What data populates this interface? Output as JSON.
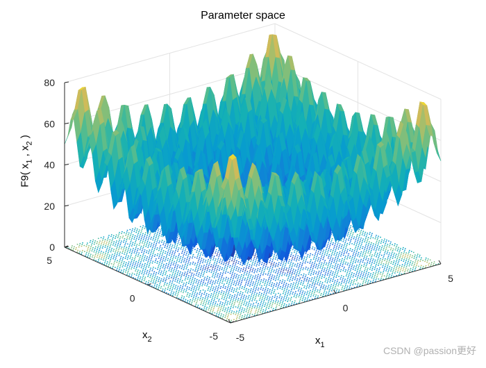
{
  "title": "Parameter space",
  "watermark": "CSDN @passion更好",
  "chart_data": {
    "type": "surface",
    "function": "F9",
    "formula": "sum(x_i^2 - 10 cos(2 pi x_i) + 10)",
    "title": "Parameter space",
    "zlabel": {
      "prefix": "F9( x",
      "s1": "1",
      "mid": " , x",
      "s2": "2",
      "suffix": " )"
    },
    "xlabel": {
      "base": "x",
      "sub": "1"
    },
    "ylabel": {
      "base": "x",
      "sub": "2"
    },
    "xlim": [
      -5,
      5
    ],
    "ylim": [
      -5,
      5
    ],
    "zlim": [
      0,
      80
    ],
    "xticks": [
      "-5",
      "0",
      "5"
    ],
    "yticks": [
      "-5",
      "0",
      "5"
    ],
    "zticks": [
      "0",
      "20",
      "40",
      "60",
      "80"
    ],
    "colormap": "parula",
    "contour_on_floor": true,
    "grid": true,
    "sample_points": [
      {
        "x": 0,
        "y": 0,
        "z": 0
      },
      {
        "x": 5,
        "y": 5,
        "z": 50
      },
      {
        "x": -4.5,
        "y": -4.5,
        "z": 80.5
      },
      {
        "x": 4.5,
        "y": 4.5,
        "z": 80.5
      }
    ]
  }
}
